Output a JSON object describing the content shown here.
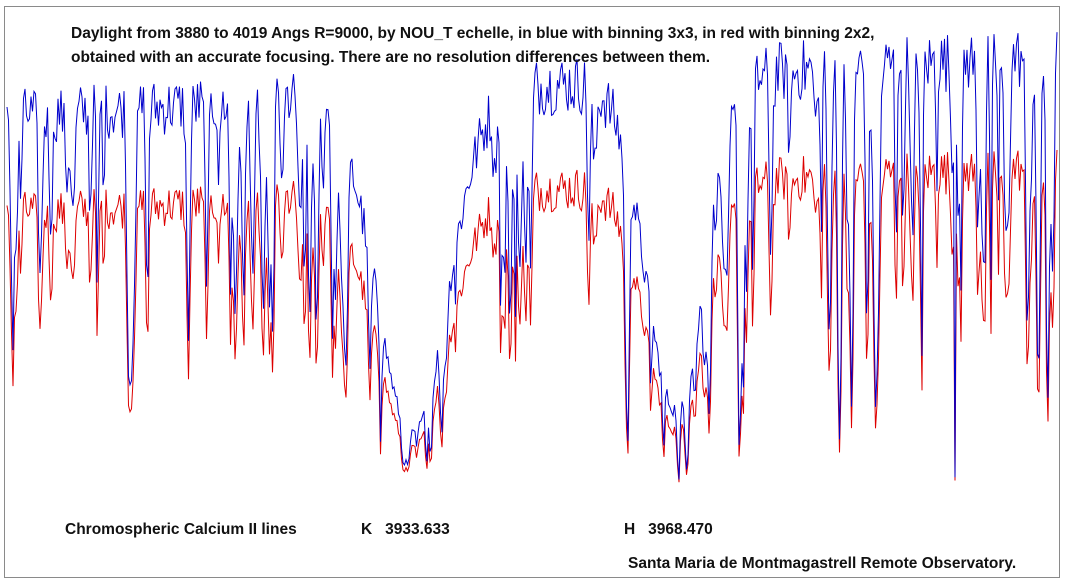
{
  "chart_data": {
    "type": "line",
    "title_lines": [
      "Daylight from 3880 to 4019 Angs  R=9000, by NOU_T echelle, in blue with binning 3x3, in red  with binning 2x2,",
      "obtained with an accurate focusing. There are no resolution differences between them."
    ],
    "xlim": [
      3880,
      4019
    ],
    "ylim": [
      0,
      1.3
    ],
    "series": [
      {
        "name": "binning 3x3",
        "color": "#0000cc"
      },
      {
        "name": "binning 2x2",
        "color": "#dd0000"
      }
    ],
    "annotations": {
      "region": "Chromospheric Calcium II lines",
      "k_line": {
        "label": "K",
        "wavelength": "3933.633"
      },
      "h_line": {
        "label": "H",
        "wavelength": "3968.470"
      }
    },
    "credit": "Santa Maria de Montmagastrell Remote Observatory."
  }
}
